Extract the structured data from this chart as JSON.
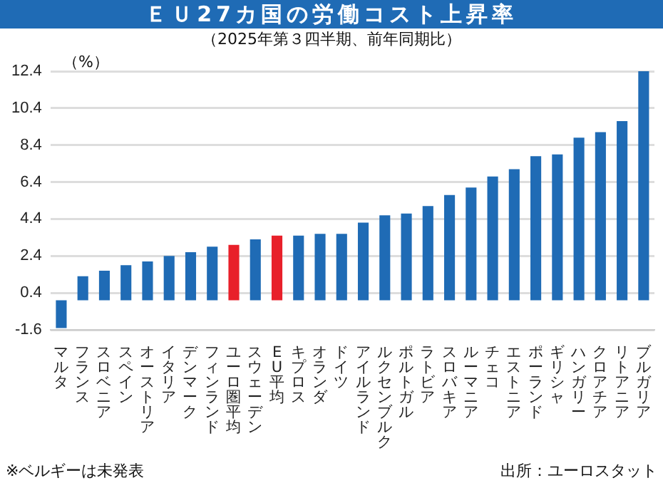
{
  "chart_data": {
    "type": "bar",
    "title": "ＥＵ27カ国の労働コスト上昇率",
    "subtitle": "（2025年第３四半期、前年同期比）",
    "ylabel": "（%）",
    "categories": [
      "マルタ",
      "フランス",
      "スロベニア",
      "スペイン",
      "オーストリア",
      "イタリア",
      "デンマーク",
      "フィンランド",
      "ユーロ圏平均",
      "スウェーデン",
      "EU平均",
      "キプロス",
      "オランダ",
      "ドイツ",
      "アイルランド",
      "ルクセンブルク",
      "ポルトガル",
      "ラトビア",
      "スロバキア",
      "ルーマニア",
      "チェコ",
      "エストニア",
      "ポーランド",
      "ギリシャ",
      "ハンガリー",
      "クロアチア",
      "リトアニア",
      "ブルガリア"
    ],
    "values": [
      -1.5,
      1.3,
      1.6,
      1.9,
      2.1,
      2.4,
      2.6,
      2.9,
      3.0,
      3.3,
      3.5,
      3.5,
      3.6,
      3.6,
      4.2,
      4.6,
      4.7,
      5.1,
      5.7,
      6.1,
      6.7,
      7.1,
      7.8,
      7.9,
      8.8,
      9.1,
      9.7,
      12.4
    ],
    "colors": [
      "#1f6bb5",
      "#1f6bb5",
      "#1f6bb5",
      "#1f6bb5",
      "#1f6bb5",
      "#1f6bb5",
      "#1f6bb5",
      "#1f6bb5",
      "#e8202a",
      "#1f6bb5",
      "#e8202a",
      "#1f6bb5",
      "#1f6bb5",
      "#1f6bb5",
      "#1f6bb5",
      "#1f6bb5",
      "#1f6bb5",
      "#1f6bb5",
      "#1f6bb5",
      "#1f6bb5",
      "#1f6bb5",
      "#1f6bb5",
      "#1f6bb5",
      "#1f6bb5",
      "#1f6bb5",
      "#1f6bb5",
      "#1f6bb5",
      "#1f6bb5"
    ],
    "ylim": [
      -1.6,
      12.4
    ],
    "yticks": [
      -1.6,
      0.4,
      2.4,
      4.4,
      6.4,
      8.4,
      10.4,
      12.4
    ],
    "grid": "y",
    "legend": false,
    "annotations": [
      "※ベルギーは未発表",
      "出所：ユーロスタット"
    ]
  }
}
